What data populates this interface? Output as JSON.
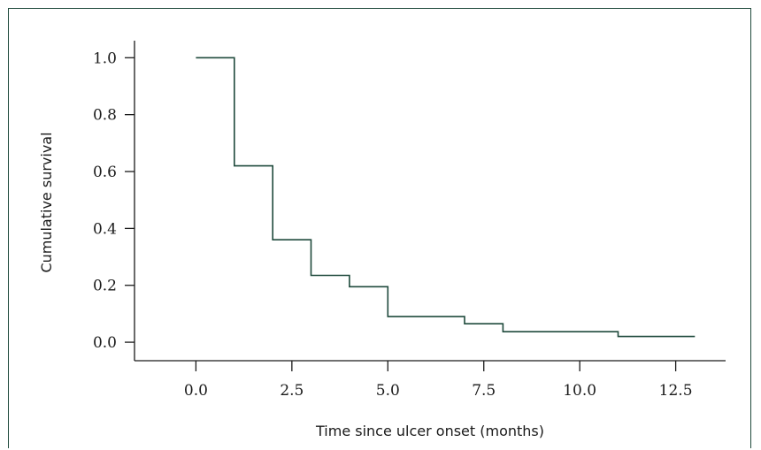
{
  "chart_data": {
    "type": "line",
    "step": true,
    "title": "",
    "xlabel": "Time since ulcer onset (months)",
    "ylabel": "Cumulative survival",
    "xlim": [
      -1.6,
      13.8
    ],
    "ylim": [
      -0.065,
      1.06
    ],
    "xticks": [
      0.0,
      2.5,
      5.0,
      7.5,
      10.0,
      12.5
    ],
    "xtick_labels": [
      "0.0",
      "2.5",
      "5.0",
      "7.5",
      "10.0",
      "12.5"
    ],
    "yticks": [
      0.0,
      0.2,
      0.4,
      0.6,
      0.8,
      1.0
    ],
    "ytick_labels": [
      "0.0",
      "0.2",
      "0.4",
      "0.6",
      "0.8",
      "1.0"
    ],
    "series": [
      {
        "x": [
          0,
          1,
          1,
          2,
          2,
          3,
          3,
          4,
          4,
          5,
          5,
          7,
          7,
          8,
          8,
          11,
          11,
          13
        ],
        "y": [
          1.0,
          1.0,
          0.62,
          0.62,
          0.36,
          0.36,
          0.235,
          0.235,
          0.195,
          0.195,
          0.09,
          0.09,
          0.065,
          0.065,
          0.037,
          0.037,
          0.02,
          0.02
        ]
      }
    ],
    "colors": {
      "line": "#1f4a3c",
      "frame": "#1f4a3c"
    },
    "grid": false
  }
}
